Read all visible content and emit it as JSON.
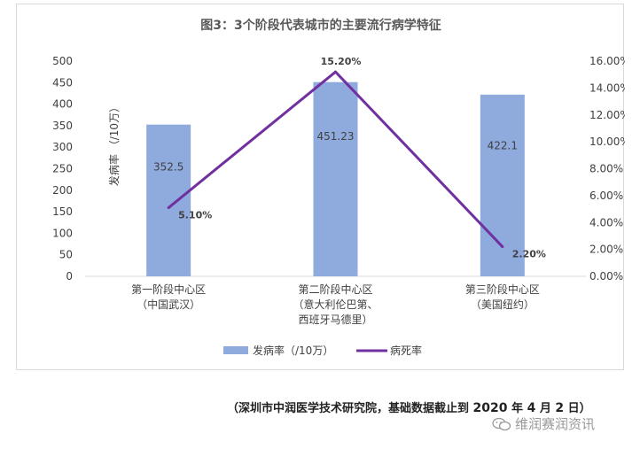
{
  "chart_data": {
    "type": "bar+line",
    "title": "图3：3个阶段代表城市的主要流行病学特征",
    "categories": [
      [
        "第一阶段中心区",
        "（中国武汉）"
      ],
      [
        "第二阶段中心区",
        "（意大利伦巴第、",
        "西班牙马德里）"
      ],
      [
        "第三阶段中心区",
        "（美国纽约）"
      ]
    ],
    "ylabel": "发病率 （/10万）",
    "ylim": [
      0,
      500
    ],
    "yticks": [
      "0",
      "50",
      "100",
      "150",
      "200",
      "250",
      "300",
      "350",
      "400",
      "450",
      "500"
    ],
    "y2lim": [
      0,
      16
    ],
    "y2ticks": [
      "0.00%",
      "2.00%",
      "4.00%",
      "6.00%",
      "8.00%",
      "10.00%",
      "12.00%",
      "14.00%",
      "16.00%"
    ],
    "series": [
      {
        "name": "发病率（/10万）",
        "type": "bar",
        "axis": "left",
        "color": "#8faadc",
        "values": [
          352.5,
          451.23,
          422.1
        ],
        "labels": [
          "352.5",
          "451.23",
          "422.1"
        ]
      },
      {
        "name": "病死率",
        "type": "line",
        "axis": "right",
        "color": "#7030a0",
        "values": [
          5.1,
          15.2,
          2.2
        ],
        "labels": [
          "5.10%",
          "15.20%",
          "2.20%"
        ]
      }
    ],
    "legend": "bottom"
  },
  "source_note": {
    "prefix": "（深圳市中润医学技术研究院，基础数据截止到 ",
    "year": "2020",
    "mid1": " 年 ",
    "month": "4",
    "mid2": " 月 ",
    "day": "2",
    "suffix": " 日）"
  },
  "watermark": {
    "text": "维润赛润资讯",
    "icon": "wechat-icon"
  }
}
